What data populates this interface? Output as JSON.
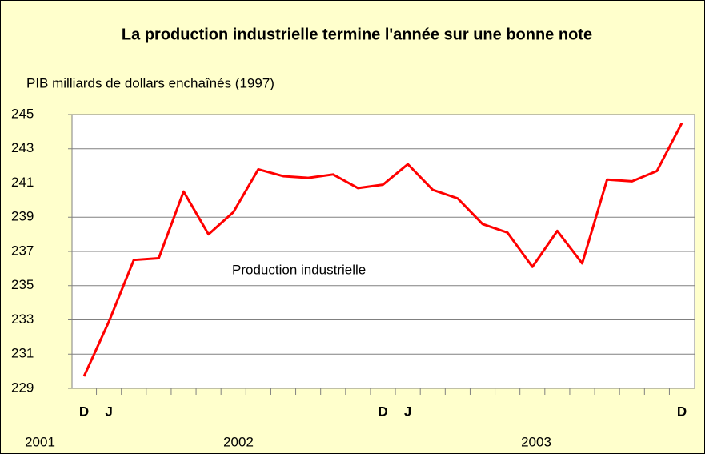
{
  "chart_data": {
    "type": "line",
    "title": "La production industrielle termine l'année sur une bonne note",
    "y_label": "PIB milliards de dollars enchaînés (1997)",
    "categories": [
      "D",
      "J",
      null,
      null,
      null,
      null,
      null,
      null,
      null,
      null,
      null,
      null,
      "D",
      "J",
      null,
      null,
      null,
      null,
      null,
      null,
      null,
      null,
      null,
      null,
      "D"
    ],
    "year_labels": [
      "2001",
      "2002",
      "2003"
    ],
    "series": [
      {
        "name": "Production industrielle",
        "color": "#ff0000",
        "values": [
          229.7,
          232.9,
          236.5,
          236.6,
          240.5,
          238.0,
          239.3,
          241.8,
          241.4,
          241.3,
          241.5,
          240.7,
          240.9,
          242.1,
          240.6,
          240.1,
          238.6,
          238.1,
          236.1,
          238.2,
          236.3,
          241.2,
          241.1,
          241.7,
          244.5
        ]
      }
    ],
    "ylim": [
      229,
      245
    ],
    "yticks": [
      229,
      231,
      233,
      235,
      237,
      239,
      241,
      243,
      245
    ],
    "grid": true
  }
}
